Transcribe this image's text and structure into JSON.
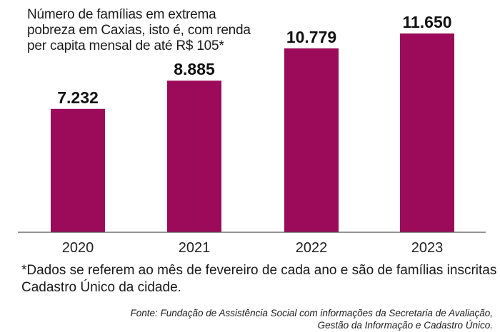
{
  "title_lines": [
    "Número de famílias em extrema",
    "pobreza em Caxias, isto é, com renda",
    "per capita mensal de até R$ 105*"
  ],
  "chart_data": {
    "type": "bar",
    "title": "Número de famílias em extrema pobreza em Caxias, isto é, com renda per capita mensal de até R$ 105*",
    "categories": [
      "2020",
      "2021",
      "2022",
      "2023"
    ],
    "values": [
      7232,
      8885,
      10779,
      11650
    ],
    "value_labels": [
      "7.232",
      "8.885",
      "10.779",
      "11.650"
    ],
    "xlabel": "",
    "ylabel": "",
    "ylim": [
      0,
      11650
    ],
    "grid": false,
    "legend": "none",
    "bar_color": "#9b0b5a"
  },
  "footnote_lines": [
    "*Dados se referem ao mês de fevereiro de cada ano e são de famílias inscritas no",
    "Cadastro Único da cidade."
  ],
  "source_lines": [
    "Fonte: Fundação de Assistência Social com informações da Secretaria de Avaliação,",
    "Gestão da Informação e Cadastro Único."
  ]
}
